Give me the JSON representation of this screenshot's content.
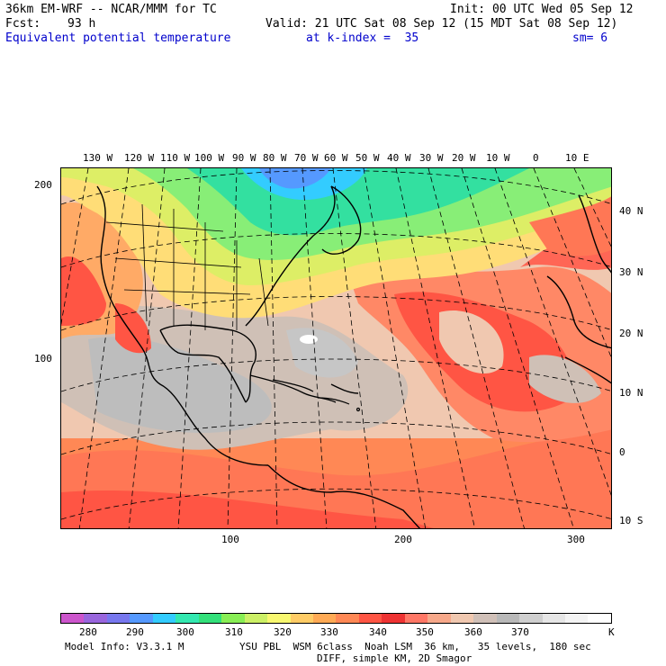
{
  "header": {
    "model": "36km EM-WRF -- NCAR/MMM for TC",
    "init": "Init: 00 UTC Wed 05 Sep 12",
    "fcst_label": "Fcst:",
    "fcst_hours": "93 h",
    "valid": "Valid: 21 UTC Sat 08 Sep 12 (15 MDT Sat 08 Sep 12)",
    "field": "Equivalent potential temperature",
    "level": "at k-index =  35",
    "smooth": "sm= 6"
  },
  "top_axis": [
    "130 W",
    "120 W",
    "110 W",
    "100 W",
    "90 W",
    "80 W",
    "70 W",
    "60 W",
    "50 W",
    "40 W",
    "30 W",
    "20 W",
    "10 W",
    "0",
    "10 E"
  ],
  "right_axis": [
    "40 N",
    "30 N",
    "20 N",
    "10 N",
    "0",
    "10 S"
  ],
  "left_axis": [
    "200",
    "100"
  ],
  "bottom_axis": [
    "100",
    "200",
    "300"
  ],
  "colorbar": {
    "labels": [
      "280",
      "290",
      "300",
      "310",
      "320",
      "330",
      "340",
      "350",
      "360",
      "370"
    ],
    "units": "K",
    "colors": [
      "#cc55cc",
      "#9966dd",
      "#7777ee",
      "#5599ff",
      "#33ccff",
      "#33e8b0",
      "#33e07a",
      "#88ee55",
      "#ccf066",
      "#f8f870",
      "#ffcc66",
      "#ffaa55",
      "#ff8855",
      "#ff5544",
      "#ee3333",
      "#ff7766",
      "#f7a88a",
      "#f0c8b0",
      "#d0c0b8",
      "#b8b8b8",
      "#cfcfcf",
      "#e6e6e6",
      "#f4f4f4",
      "#ffffff"
    ]
  },
  "footer": {
    "model_info": "Model Info: V3.3.1 M",
    "physics": "YSU PBL  WSM 6class  Noah LSM  36 km,   35 levels,  180 sec",
    "diff": "DIFF, simple KM, 2D Smagor"
  }
}
